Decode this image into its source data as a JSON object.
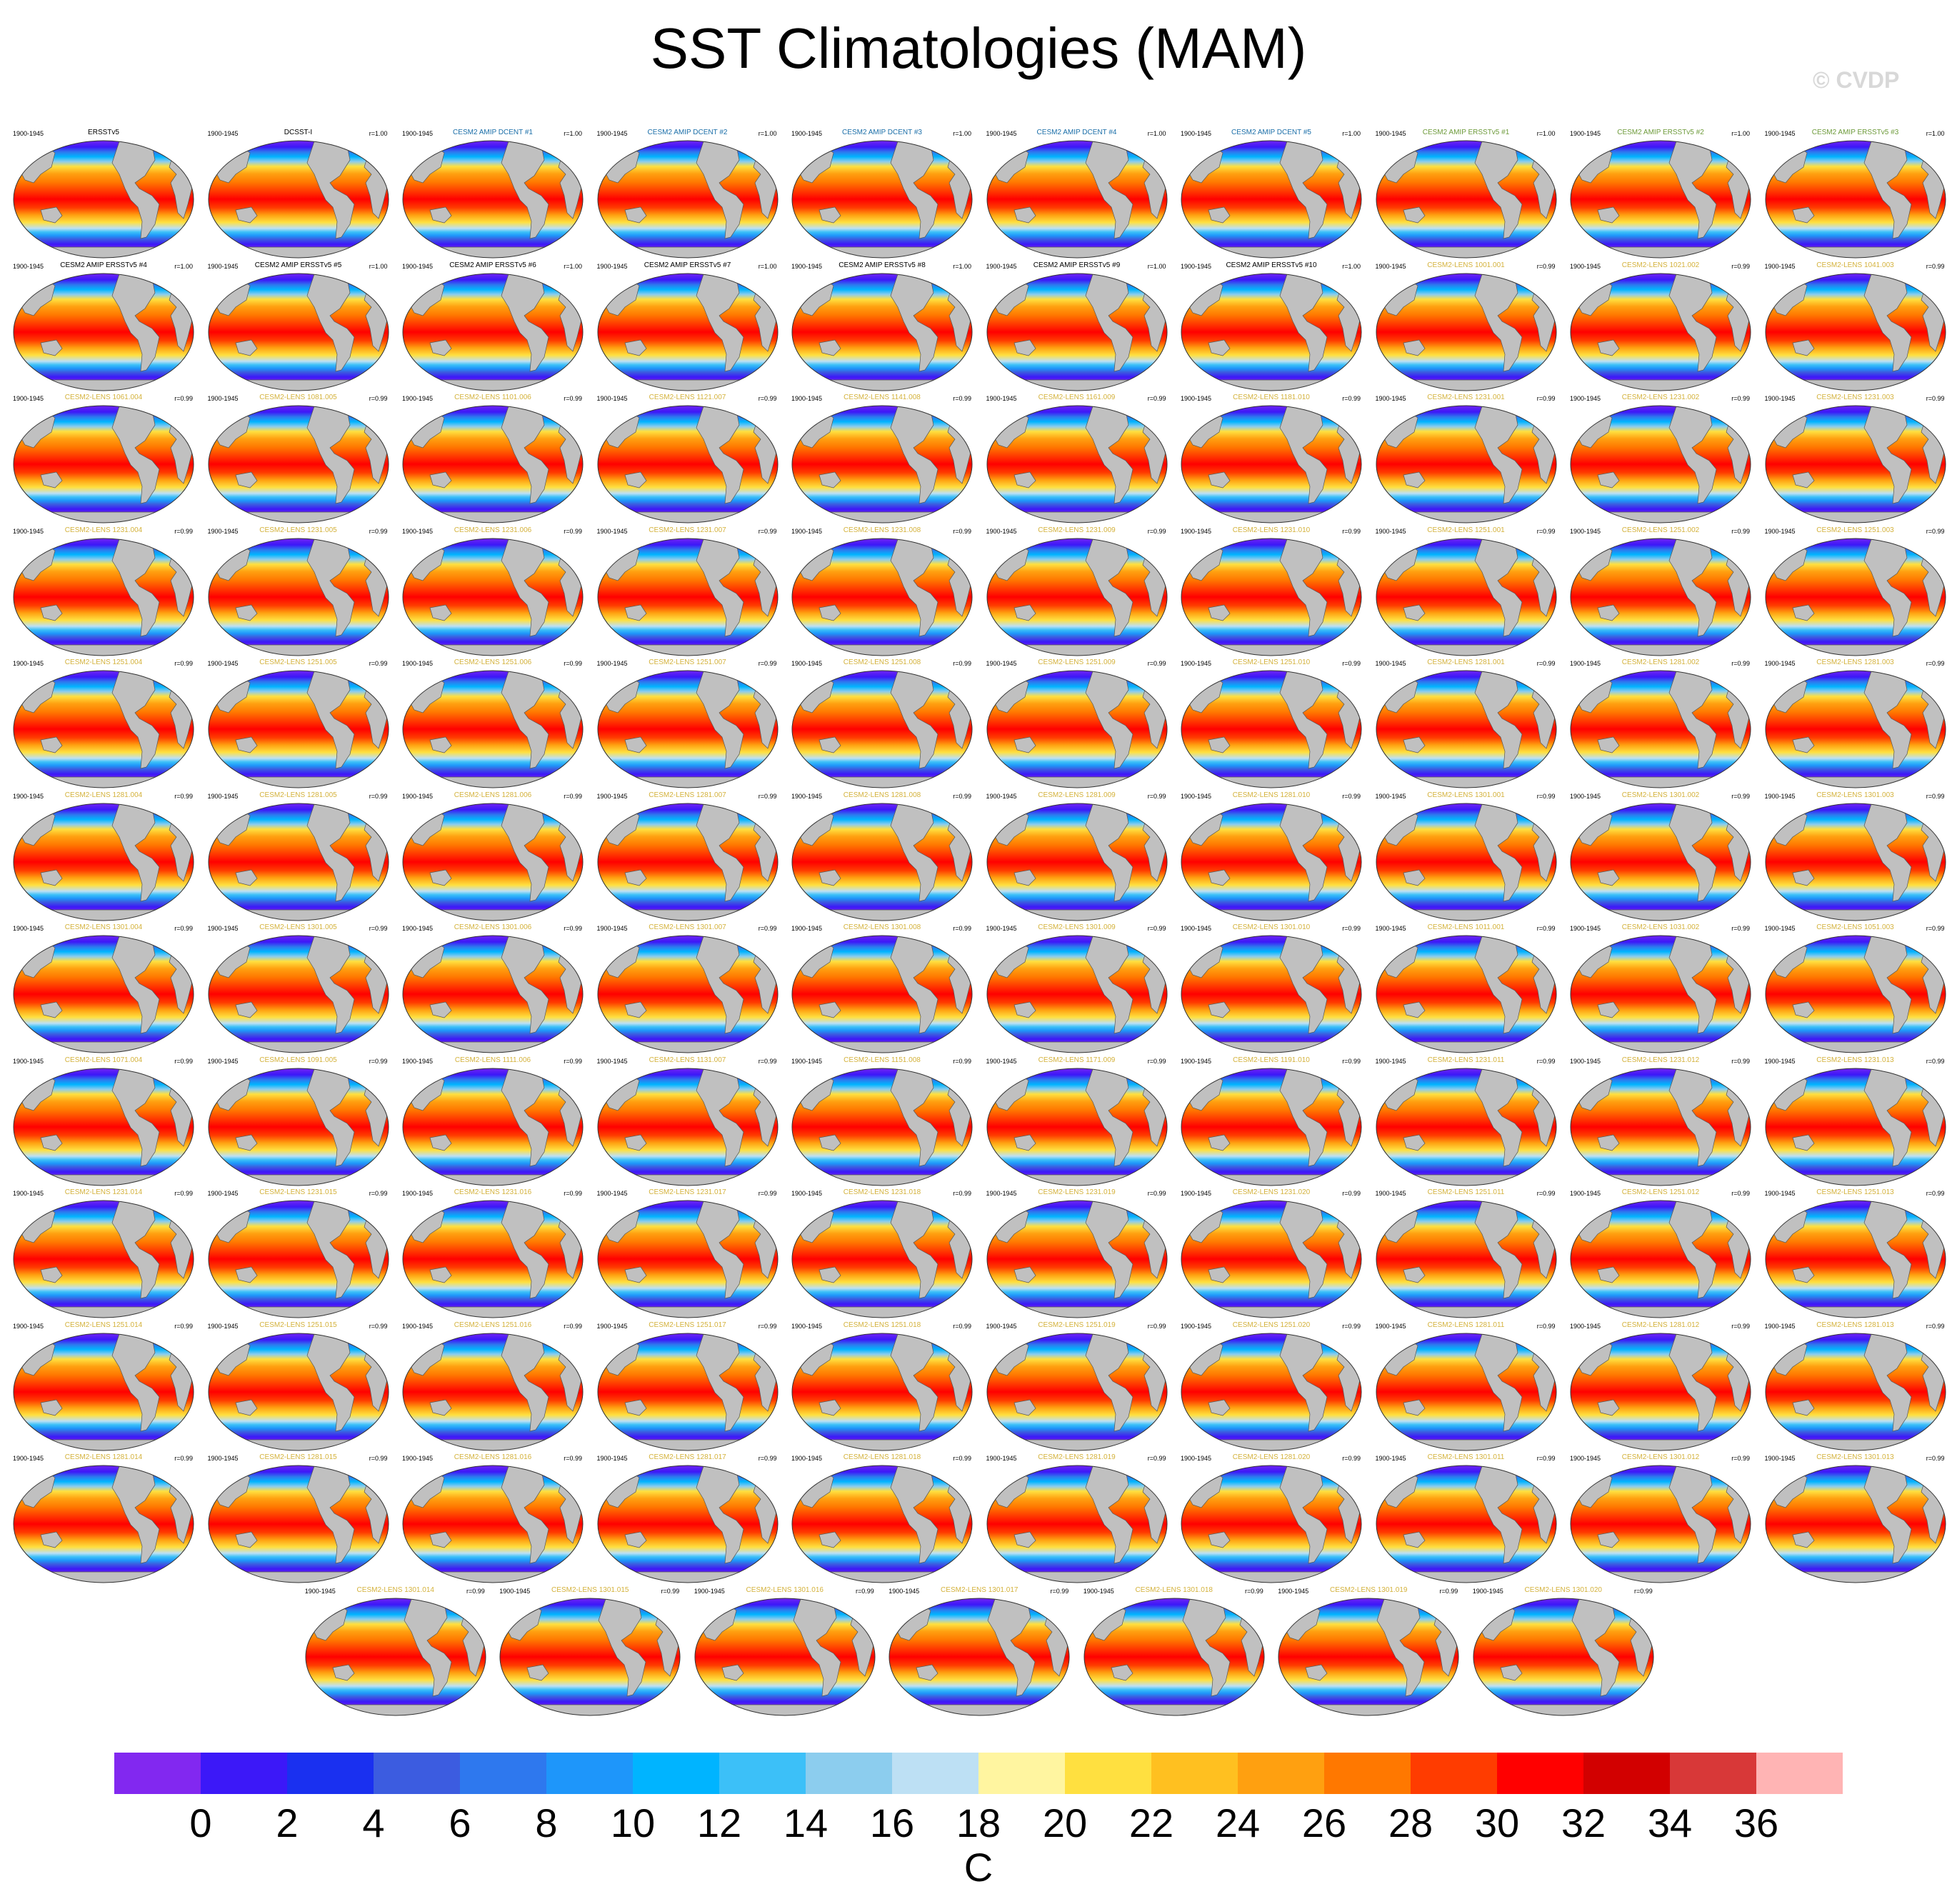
{
  "title": "SST Climatologies (MAM)",
  "copyright": "© CVDP",
  "units": "C",
  "period": "1900-1945",
  "palette": [
    "#8228f0",
    "#3c18f8",
    "#1a30f0",
    "#3c5ce0",
    "#2e78ee",
    "#1e96fa",
    "#00b4ff",
    "#3cc0f8",
    "#8ccdee",
    "#bde0f4",
    "#fff5a0",
    "#ffe040",
    "#ffc020",
    "#ffa010",
    "#ff7800",
    "#ff3c00",
    "#ff0000",
    "#d20000",
    "#d83838",
    "#ffb4b4"
  ],
  "colorbar_ticks": [
    "0",
    "2",
    "4",
    "6",
    "8",
    "10",
    "12",
    "14",
    "16",
    "18",
    "20",
    "22",
    "24",
    "26",
    "28",
    "30",
    "32",
    "34",
    "36"
  ],
  "panel_colors": {
    "obs": "#000000",
    "dcent": "#1a6ea8",
    "ersst": "#6d9a3a",
    "lens": "#d4b23c",
    "land": "#c0c0c0"
  },
  "panels": [
    {
      "title": "ERSSTv5",
      "corr": "",
      "group": "obs"
    },
    {
      "title": "DCSST-I",
      "corr": "r=1.00",
      "group": "obs"
    },
    {
      "title": "CESM2 AMIP DCENT #1",
      "corr": "r=1.00",
      "group": "dcent"
    },
    {
      "title": "CESM2 AMIP DCENT #2",
      "corr": "r=1.00",
      "group": "dcent"
    },
    {
      "title": "CESM2 AMIP DCENT #3",
      "corr": "r=1.00",
      "group": "dcent"
    },
    {
      "title": "CESM2 AMIP DCENT #4",
      "corr": "r=1.00",
      "group": "dcent"
    },
    {
      "title": "CESM2 AMIP DCENT #5",
      "corr": "r=1.00",
      "group": "dcent"
    },
    {
      "title": "CESM2 AMIP ERSSTv5 #1",
      "corr": "r=1.00",
      "group": "ersst"
    },
    {
      "title": "CESM2 AMIP ERSSTv5 #2",
      "corr": "r=1.00",
      "group": "ersst"
    },
    {
      "title": "CESM2 AMIP ERSSTv5 #3",
      "corr": "r=1.00",
      "group": "ersst"
    },
    {
      "title": "CESM2 AMIP ERSSTv5 #4",
      "corr": "r=1.00",
      "group": "obs"
    },
    {
      "title": "CESM2 AMIP ERSSTv5 #5",
      "corr": "r=1.00",
      "group": "obs"
    },
    {
      "title": "CESM2 AMIP ERSSTv5 #6",
      "corr": "r=1.00",
      "group": "obs"
    },
    {
      "title": "CESM2 AMIP ERSSTv5 #7",
      "corr": "r=1.00",
      "group": "obs"
    },
    {
      "title": "CESM2 AMIP ERSSTv5 #8",
      "corr": "r=1.00",
      "group": "obs"
    },
    {
      "title": "CESM2 AMIP ERSSTv5 #9",
      "corr": "r=1.00",
      "group": "obs"
    },
    {
      "title": "CESM2 AMIP ERSSTv5 #10",
      "corr": "r=1.00",
      "group": "obs"
    },
    {
      "title": "CESM2-LENS 1001.001",
      "corr": "r=0.99",
      "group": "lens"
    },
    {
      "title": "CESM2-LENS 1021.002",
      "corr": "r=0.99",
      "group": "lens"
    },
    {
      "title": "CESM2-LENS 1041.003",
      "corr": "r=0.99",
      "group": "lens"
    },
    {
      "title": "CESM2-LENS 1061.004",
      "corr": "r=0.99",
      "group": "lens"
    },
    {
      "title": "CESM2-LENS 1081.005",
      "corr": "r=0.99",
      "group": "lens"
    },
    {
      "title": "CESM2-LENS 1101.006",
      "corr": "r=0.99",
      "group": "lens"
    },
    {
      "title": "CESM2-LENS 1121.007",
      "corr": "r=0.99",
      "group": "lens"
    },
    {
      "title": "CESM2-LENS 1141.008",
      "corr": "r=0.99",
      "group": "lens"
    },
    {
      "title": "CESM2-LENS 1161.009",
      "corr": "r=0.99",
      "group": "lens"
    },
    {
      "title": "CESM2-LENS 1181.010",
      "corr": "r=0.99",
      "group": "lens"
    },
    {
      "title": "CESM2-LENS 1231.001",
      "corr": "r=0.99",
      "group": "lens"
    },
    {
      "title": "CESM2-LENS 1231.002",
      "corr": "r=0.99",
      "group": "lens"
    },
    {
      "title": "CESM2-LENS 1231.003",
      "corr": "r=0.99",
      "group": "lens"
    },
    {
      "title": "CESM2-LENS 1231.004",
      "corr": "r=0.99",
      "group": "lens"
    },
    {
      "title": "CESM2-LENS 1231.005",
      "corr": "r=0.99",
      "group": "lens"
    },
    {
      "title": "CESM2-LENS 1231.006",
      "corr": "r=0.99",
      "group": "lens"
    },
    {
      "title": "CESM2-LENS 1231.007",
      "corr": "r=0.99",
      "group": "lens"
    },
    {
      "title": "CESM2-LENS 1231.008",
      "corr": "r=0.99",
      "group": "lens"
    },
    {
      "title": "CESM2-LENS 1231.009",
      "corr": "r=0.99",
      "group": "lens"
    },
    {
      "title": "CESM2-LENS 1231.010",
      "corr": "r=0.99",
      "group": "lens"
    },
    {
      "title": "CESM2-LENS 1251.001",
      "corr": "r=0.99",
      "group": "lens"
    },
    {
      "title": "CESM2-LENS 1251.002",
      "corr": "r=0.99",
      "group": "lens"
    },
    {
      "title": "CESM2-LENS 1251.003",
      "corr": "r=0.99",
      "group": "lens"
    },
    {
      "title": "CESM2-LENS 1251.004",
      "corr": "r=0.99",
      "group": "lens"
    },
    {
      "title": "CESM2-LENS 1251.005",
      "corr": "r=0.99",
      "group": "lens"
    },
    {
      "title": "CESM2-LENS 1251.006",
      "corr": "r=0.99",
      "group": "lens"
    },
    {
      "title": "CESM2-LENS 1251.007",
      "corr": "r=0.99",
      "group": "lens"
    },
    {
      "title": "CESM2-LENS 1251.008",
      "corr": "r=0.99",
      "group": "lens"
    },
    {
      "title": "CESM2-LENS 1251.009",
      "corr": "r=0.99",
      "group": "lens"
    },
    {
      "title": "CESM2-LENS 1251.010",
      "corr": "r=0.99",
      "group": "lens"
    },
    {
      "title": "CESM2-LENS 1281.001",
      "corr": "r=0.99",
      "group": "lens"
    },
    {
      "title": "CESM2-LENS 1281.002",
      "corr": "r=0.99",
      "group": "lens"
    },
    {
      "title": "CESM2-LENS 1281.003",
      "corr": "r=0.99",
      "group": "lens"
    },
    {
      "title": "CESM2-LENS 1281.004",
      "corr": "r=0.99",
      "group": "lens"
    },
    {
      "title": "CESM2-LENS 1281.005",
      "corr": "r=0.99",
      "group": "lens"
    },
    {
      "title": "CESM2-LENS 1281.006",
      "corr": "r=0.99",
      "group": "lens"
    },
    {
      "title": "CESM2-LENS 1281.007",
      "corr": "r=0.99",
      "group": "lens"
    },
    {
      "title": "CESM2-LENS 1281.008",
      "corr": "r=0.99",
      "group": "lens"
    },
    {
      "title": "CESM2-LENS 1281.009",
      "corr": "r=0.99",
      "group": "lens"
    },
    {
      "title": "CESM2-LENS 1281.010",
      "corr": "r=0.99",
      "group": "lens"
    },
    {
      "title": "CESM2-LENS 1301.001",
      "corr": "r=0.99",
      "group": "lens"
    },
    {
      "title": "CESM2-LENS 1301.002",
      "corr": "r=0.99",
      "group": "lens"
    },
    {
      "title": "CESM2-LENS 1301.003",
      "corr": "r=0.99",
      "group": "lens"
    },
    {
      "title": "CESM2-LENS 1301.004",
      "corr": "r=0.99",
      "group": "lens"
    },
    {
      "title": "CESM2-LENS 1301.005",
      "corr": "r=0.99",
      "group": "lens"
    },
    {
      "title": "CESM2-LENS 1301.006",
      "corr": "r=0.99",
      "group": "lens"
    },
    {
      "title": "CESM2-LENS 1301.007",
      "corr": "r=0.99",
      "group": "lens"
    },
    {
      "title": "CESM2-LENS 1301.008",
      "corr": "r=0.99",
      "group": "lens"
    },
    {
      "title": "CESM2-LENS 1301.009",
      "corr": "r=0.99",
      "group": "lens"
    },
    {
      "title": "CESM2-LENS 1301.010",
      "corr": "r=0.99",
      "group": "lens"
    },
    {
      "title": "CESM2-LENS 1011.001",
      "corr": "r=0.99",
      "group": "lens"
    },
    {
      "title": "CESM2-LENS 1031.002",
      "corr": "r=0.99",
      "group": "lens"
    },
    {
      "title": "CESM2-LENS 1051.003",
      "corr": "r=0.99",
      "group": "lens"
    },
    {
      "title": "CESM2-LENS 1071.004",
      "corr": "r=0.99",
      "group": "lens"
    },
    {
      "title": "CESM2-LENS 1091.005",
      "corr": "r=0.99",
      "group": "lens"
    },
    {
      "title": "CESM2-LENS 1111.006",
      "corr": "r=0.99",
      "group": "lens"
    },
    {
      "title": "CESM2-LENS 1131.007",
      "corr": "r=0.99",
      "group": "lens"
    },
    {
      "title": "CESM2-LENS 1151.008",
      "corr": "r=0.99",
      "group": "lens"
    },
    {
      "title": "CESM2-LENS 1171.009",
      "corr": "r=0.99",
      "group": "lens"
    },
    {
      "title": "CESM2-LENS 1191.010",
      "corr": "r=0.99",
      "group": "lens"
    },
    {
      "title": "CESM2-LENS 1231.011",
      "corr": "r=0.99",
      "group": "lens"
    },
    {
      "title": "CESM2-LENS 1231.012",
      "corr": "r=0.99",
      "group": "lens"
    },
    {
      "title": "CESM2-LENS 1231.013",
      "corr": "r=0.99",
      "group": "lens"
    },
    {
      "title": "CESM2-LENS 1231.014",
      "corr": "r=0.99",
      "group": "lens"
    },
    {
      "title": "CESM2-LENS 1231.015",
      "corr": "r=0.99",
      "group": "lens"
    },
    {
      "title": "CESM2-LENS 1231.016",
      "corr": "r=0.99",
      "group": "lens"
    },
    {
      "title": "CESM2-LENS 1231.017",
      "corr": "r=0.99",
      "group": "lens"
    },
    {
      "title": "CESM2-LENS 1231.018",
      "corr": "r=0.99",
      "group": "lens"
    },
    {
      "title": "CESM2-LENS 1231.019",
      "corr": "r=0.99",
      "group": "lens"
    },
    {
      "title": "CESM2-LENS 1231.020",
      "corr": "r=0.99",
      "group": "lens"
    },
    {
      "title": "CESM2-LENS 1251.011",
      "corr": "r=0.99",
      "group": "lens"
    },
    {
      "title": "CESM2-LENS 1251.012",
      "corr": "r=0.99",
      "group": "lens"
    },
    {
      "title": "CESM2-LENS 1251.013",
      "corr": "r=0.99",
      "group": "lens"
    },
    {
      "title": "CESM2-LENS 1251.014",
      "corr": "r=0.99",
      "group": "lens"
    },
    {
      "title": "CESM2-LENS 1251.015",
      "corr": "r=0.99",
      "group": "lens"
    },
    {
      "title": "CESM2-LENS 1251.016",
      "corr": "r=0.99",
      "group": "lens"
    },
    {
      "title": "CESM2-LENS 1251.017",
      "corr": "r=0.99",
      "group": "lens"
    },
    {
      "title": "CESM2-LENS 1251.018",
      "corr": "r=0.99",
      "group": "lens"
    },
    {
      "title": "CESM2-LENS 1251.019",
      "corr": "r=0.99",
      "group": "lens"
    },
    {
      "title": "CESM2-LENS 1251.020",
      "corr": "r=0.99",
      "group": "lens"
    },
    {
      "title": "CESM2-LENS 1281.011",
      "corr": "r=0.99",
      "group": "lens"
    },
    {
      "title": "CESM2-LENS 1281.012",
      "corr": "r=0.99",
      "group": "lens"
    },
    {
      "title": "CESM2-LENS 1281.013",
      "corr": "r=0.99",
      "group": "lens"
    },
    {
      "title": "CESM2-LENS 1281.014",
      "corr": "r=0.99",
      "group": "lens"
    },
    {
      "title": "CESM2-LENS 1281.015",
      "corr": "r=0.99",
      "group": "lens"
    },
    {
      "title": "CESM2-LENS 1281.016",
      "corr": "r=0.99",
      "group": "lens"
    },
    {
      "title": "CESM2-LENS 1281.017",
      "corr": "r=0.99",
      "group": "lens"
    },
    {
      "title": "CESM2-LENS 1281.018",
      "corr": "r=0.99",
      "group": "lens"
    },
    {
      "title": "CESM2-LENS 1281.019",
      "corr": "r=0.99",
      "group": "lens"
    },
    {
      "title": "CESM2-LENS 1281.020",
      "corr": "r=0.99",
      "group": "lens"
    },
    {
      "title": "CESM2-LENS 1301.011",
      "corr": "r=0.99",
      "group": "lens"
    },
    {
      "title": "CESM2-LENS 1301.012",
      "corr": "r=0.99",
      "group": "lens"
    },
    {
      "title": "CESM2-LENS 1301.013",
      "corr": "r=0.99",
      "group": "lens"
    },
    {
      "title": "CESM2-LENS 1301.014",
      "corr": "r=0.99",
      "group": "lens"
    },
    {
      "title": "CESM2-LENS 1301.015",
      "corr": "r=0.99",
      "group": "lens"
    },
    {
      "title": "CESM2-LENS 1301.016",
      "corr": "r=0.99",
      "group": "lens"
    },
    {
      "title": "CESM2-LENS 1301.017",
      "corr": "r=0.99",
      "group": "lens"
    },
    {
      "title": "CESM2-LENS 1301.018",
      "corr": "r=0.99",
      "group": "lens"
    },
    {
      "title": "CESM2-LENS 1301.019",
      "corr": "r=0.99",
      "group": "lens"
    },
    {
      "title": "CESM2-LENS 1301.020",
      "corr": "r=0.99",
      "group": "lens"
    }
  ]
}
